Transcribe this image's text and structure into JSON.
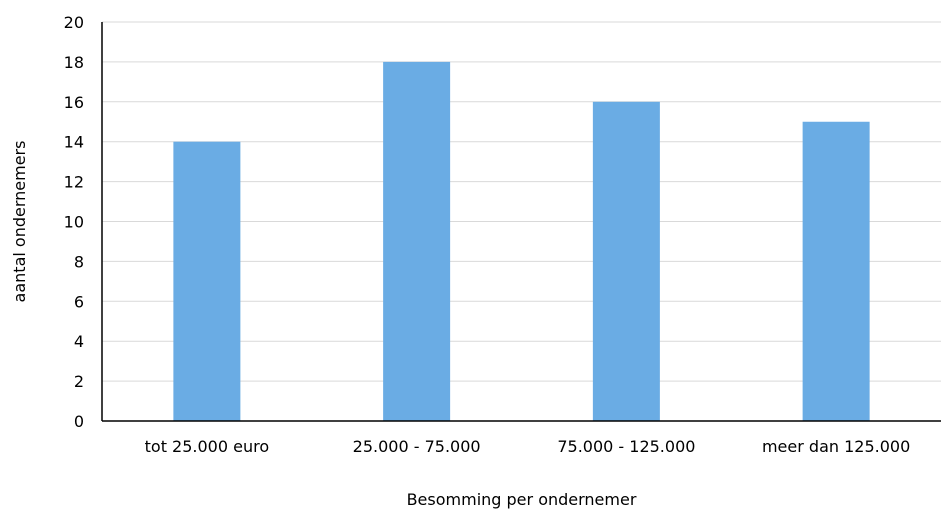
{
  "chart_data": {
    "type": "bar",
    "title": "",
    "xlabel": "Besomming per ondernemer",
    "ylabel": "aantal ondernemers",
    "categories": [
      "tot 25.000 euro",
      "25.000 - 75.000",
      "75.000 - 125.000",
      "meer dan 125.000"
    ],
    "values": [
      14,
      18,
      16,
      15
    ],
    "ylim": [
      0,
      20
    ],
    "yticks": [
      0,
      2,
      4,
      6,
      8,
      10,
      12,
      14,
      16,
      18,
      20
    ],
    "grid": true,
    "legend": "none",
    "bar_color": "#6aace4",
    "grid_color": "#d9d9d9",
    "axis_color": "#000000"
  }
}
